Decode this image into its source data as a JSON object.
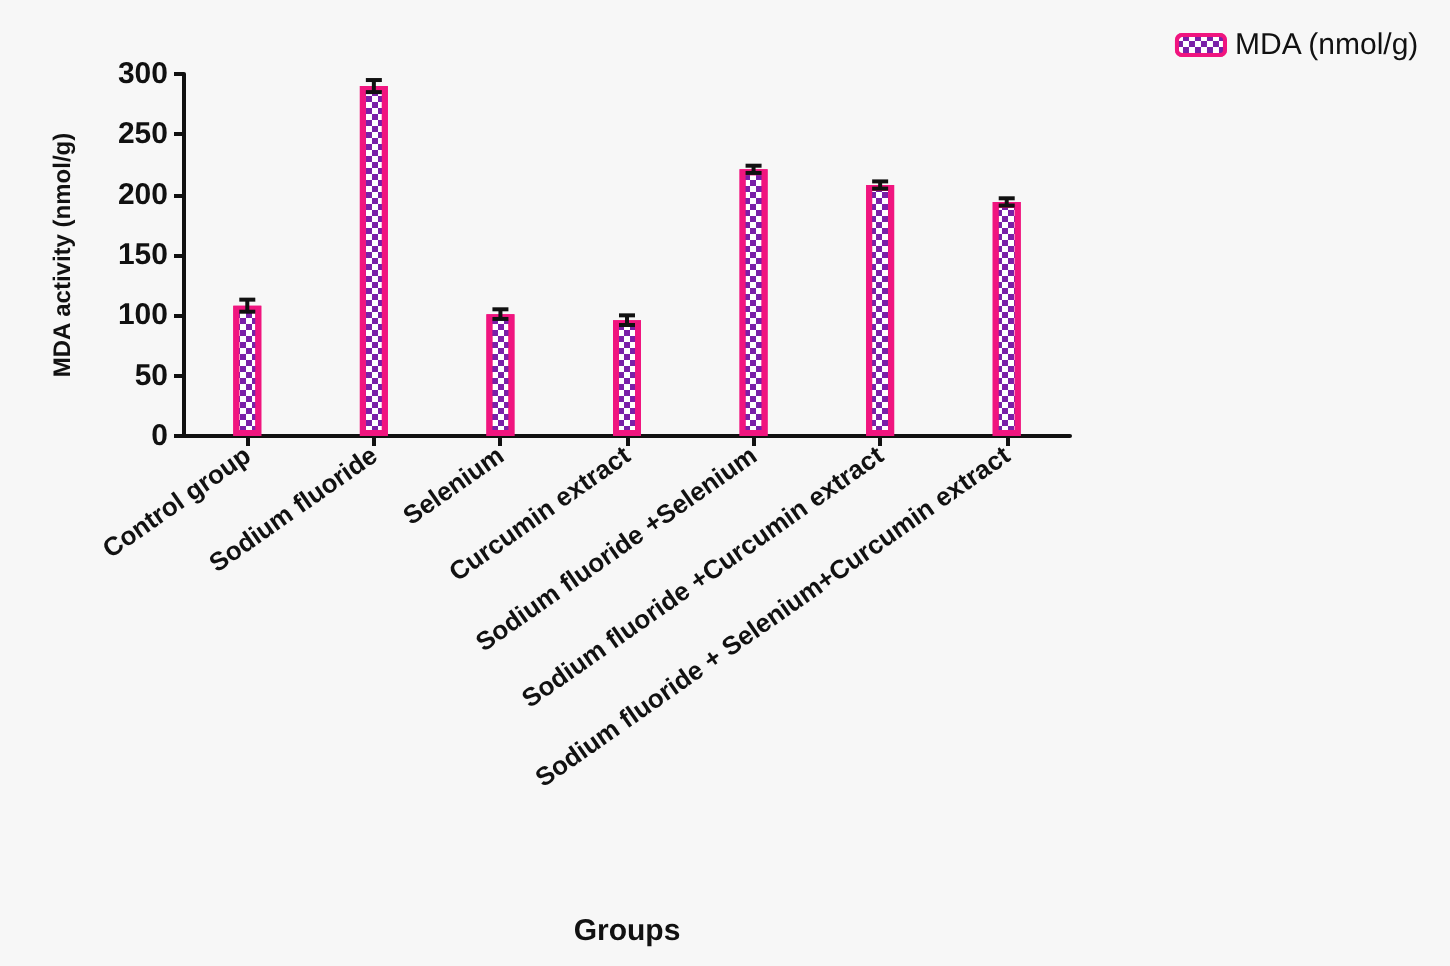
{
  "chart_data": {
    "type": "bar",
    "xlabel": "Groups",
    "ylabel": "MDA activity (nmol/g)",
    "categories": [
      "Control group",
      "Sodium fluoride",
      "Selenium",
      "Curcumin extract",
      "Sodium fluoride +Selenium",
      "Sodium fluoride +Curcumin extract",
      "Sodium fluoride + Selenium+Curcumin extract"
    ],
    "series": [
      {
        "name": "MDA (nmol/g)",
        "color": "#f0157f",
        "values": [
          108,
          290,
          101,
          96,
          221,
          208,
          194
        ],
        "errors": [
          5,
          5,
          4,
          4,
          3,
          3,
          3
        ]
      }
    ],
    "ylim": [
      0,
      300
    ],
    "yticks": [
      0,
      50,
      100,
      150,
      200,
      250,
      300
    ],
    "grid": false,
    "legend": "top right"
  }
}
